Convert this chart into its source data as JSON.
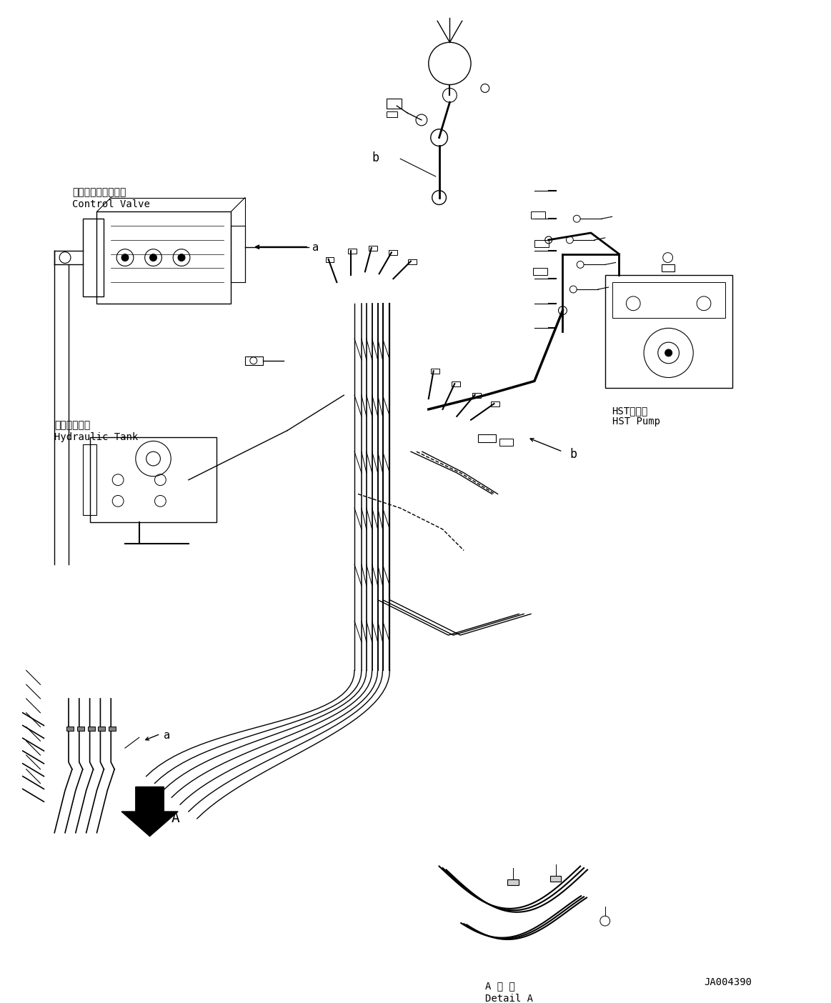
{
  "bg_color": "#ffffff",
  "line_color": "#000000",
  "fig_width": 11.63,
  "fig_height": 14.04,
  "dpi": 100,
  "labels": {
    "control_valve_jp": "コントロールバルブ",
    "control_valve_en": "Control Valve",
    "hydraulic_tank_jp": "作動油タンク",
    "hydraulic_tank_en": "Hydraulic Tank",
    "hst_pump_jp": "HSTポンプ",
    "hst_pump_en": "HST Pump",
    "detail_a_jp": "A 詳 細",
    "detail_a_en": "Detail A",
    "drawing_number": "JA004390",
    "label_a1": "a",
    "label_a2": "a",
    "label_b1": "b",
    "label_b2": "b",
    "label_A": "A"
  },
  "colors": {
    "drawing_lines": "#000000",
    "text": "#000000",
    "background": "#ffffff",
    "arrow": "#000000"
  }
}
